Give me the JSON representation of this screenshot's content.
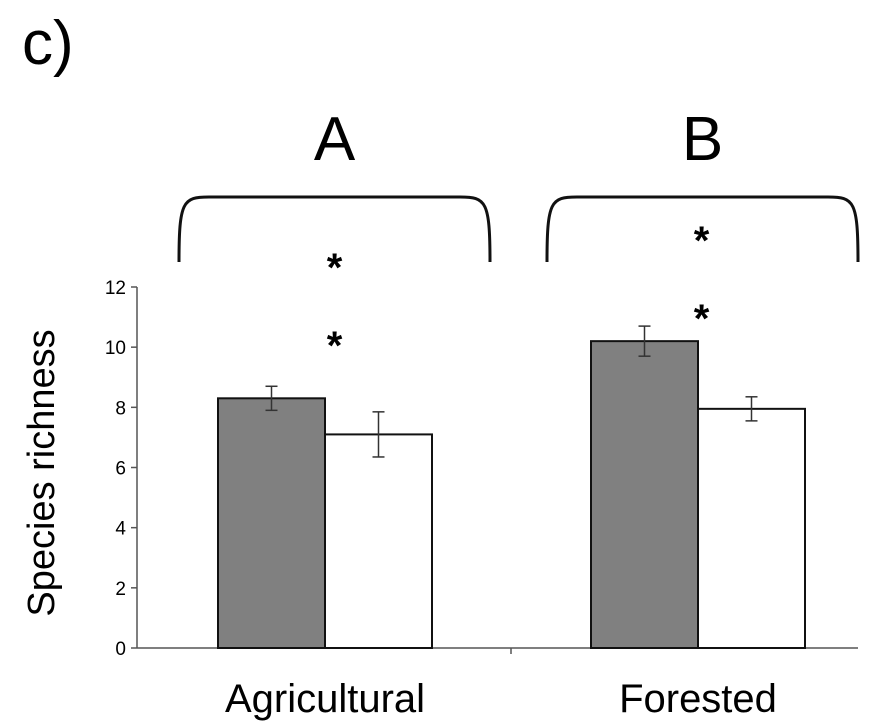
{
  "panel_label": "c)",
  "chart_data": {
    "type": "bar",
    "title": "",
    "xlabel": "",
    "ylabel": "Species richness",
    "ylim": [
      0,
      12
    ],
    "yticks": [
      0,
      2,
      4,
      6,
      8,
      10,
      12
    ],
    "grid": false,
    "categories": [
      "Agricultural",
      "Forested"
    ],
    "group_labels": [
      "A",
      "B"
    ],
    "series": [
      {
        "fill": "#808080",
        "values": [
          8.3,
          10.2
        ],
        "errors": [
          0.4,
          0.5
        ]
      },
      {
        "fill": "#ffffff",
        "values": [
          7.1,
          7.95
        ],
        "errors": [
          0.75,
          0.4
        ]
      }
    ],
    "annotations": [
      {
        "text": "*",
        "group": 0,
        "y": 12.8
      },
      {
        "text": "*",
        "group": 0,
        "y": 10.2
      },
      {
        "text": "*",
        "group": 1,
        "y": 13.7
      },
      {
        "text": "*",
        "group": 1,
        "y": 11.1
      }
    ]
  }
}
